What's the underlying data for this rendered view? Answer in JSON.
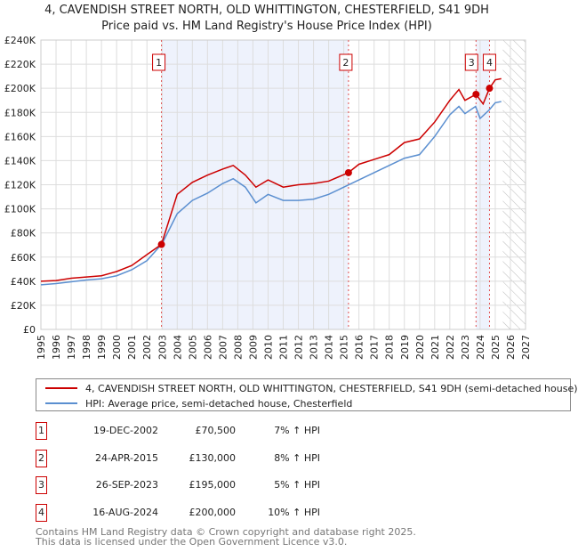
{
  "title": "4, CAVENDISH STREET NORTH, OLD WHITTINGTON, CHESTERFIELD, S41 9DH",
  "subtitle": "Price paid vs. HM Land Registry's House Price Index (HPI)",
  "chart_data": {
    "type": "line",
    "xlim": [
      1995,
      2027
    ],
    "ylim": [
      0,
      240000
    ],
    "x_ticks": [
      "1995",
      "1996",
      "1997",
      "1998",
      "1999",
      "2000",
      "2001",
      "2002",
      "2003",
      "2004",
      "2005",
      "2006",
      "2007",
      "2008",
      "2009",
      "2010",
      "2011",
      "2012",
      "2013",
      "2014",
      "2015",
      "2016",
      "2017",
      "2018",
      "2019",
      "2020",
      "2021",
      "2022",
      "2023",
      "2024",
      "2025",
      "2026",
      "2027"
    ],
    "y_ticks": [
      "£0",
      "£20K",
      "£40K",
      "£60K",
      "£80K",
      "£100K",
      "£120K",
      "£140K",
      "£160K",
      "£180K",
      "£200K",
      "£220K",
      "£240K"
    ],
    "series": [
      {
        "name": "4, CAVENDISH STREET NORTH, OLD WHITTINGTON, CHESTERFIELD, S41 9DH (semi-detached house)",
        "color": "#cc0000",
        "x": [
          1995,
          1996,
          1997,
          1998,
          1999,
          2000,
          2001,
          2002,
          2002.96,
          2004,
          2005,
          2006,
          2007,
          2007.7,
          2008.5,
          2009.2,
          2010,
          2011,
          2012,
          2013,
          2014,
          2015.3,
          2016,
          2017,
          2018,
          2019,
          2020,
          2021,
          2022,
          2022.6,
          2023,
          2023.73,
          2024.2,
          2024.62,
          2025,
          2025.4
        ],
        "y": [
          40000,
          40500,
          42500,
          43500,
          44500,
          48000,
          53000,
          62000,
          70500,
          112000,
          122000,
          128000,
          133000,
          136000,
          128000,
          118000,
          124000,
          118000,
          120000,
          121000,
          123000,
          130000,
          137000,
          141000,
          145000,
          155000,
          158000,
          172000,
          190000,
          199000,
          190000,
          195000,
          187000,
          200000,
          207000,
          208000
        ]
      },
      {
        "name": "HPI: Average price, semi-detached house, Chesterfield",
        "color": "#5b8fd0",
        "x": [
          1995,
          1996,
          1997,
          1998,
          1999,
          2000,
          2001,
          2002,
          2003,
          2004,
          2005,
          2006,
          2007,
          2007.7,
          2008.5,
          2009.2,
          2010,
          2011,
          2012,
          2013,
          2014,
          2015,
          2016,
          2017,
          2018,
          2019,
          2020,
          2021,
          2022,
          2022.6,
          2023,
          2023.7,
          2024,
          2024.6,
          2025,
          2025.4
        ],
        "y": [
          37000,
          38000,
          39500,
          41000,
          42000,
          44500,
          49500,
          57000,
          71000,
          96000,
          107000,
          113000,
          121000,
          125000,
          118000,
          105000,
          112000,
          107000,
          107000,
          108000,
          112000,
          118000,
          124000,
          130000,
          136000,
          142000,
          145000,
          160000,
          178000,
          185000,
          179000,
          185000,
          175000,
          182000,
          188000,
          189000
        ]
      }
    ],
    "sales": [
      {
        "label": "1",
        "x": 2002.96,
        "price": 70500,
        "date": "19-DEC-2002",
        "price_text": "£70,500",
        "hpi": "7% ↑ HPI"
      },
      {
        "label": "2",
        "x": 2015.31,
        "price": 130000,
        "date": "24-APR-2015",
        "price_text": "£130,000",
        "hpi": "8% ↑ HPI"
      },
      {
        "label": "3",
        "x": 2023.73,
        "price": 195000,
        "date": "26-SEP-2023",
        "price_text": "£195,000",
        "hpi": "5% ↑ HPI"
      },
      {
        "label": "4",
        "x": 2024.62,
        "price": 200000,
        "date": "16-AUG-2024",
        "price_text": "£200,000",
        "hpi": "10% ↑ HPI"
      }
    ],
    "shaded_spans": [
      [
        2002.96,
        2015.31
      ],
      [
        2023.73,
        2024.62
      ]
    ],
    "forecast_from": 2025.5,
    "grid": true
  },
  "footer": {
    "line1": "Contains HM Land Registry data © Crown copyright and database right 2025.",
    "line2": "This data is licensed under the Open Government Licence v3.0."
  }
}
